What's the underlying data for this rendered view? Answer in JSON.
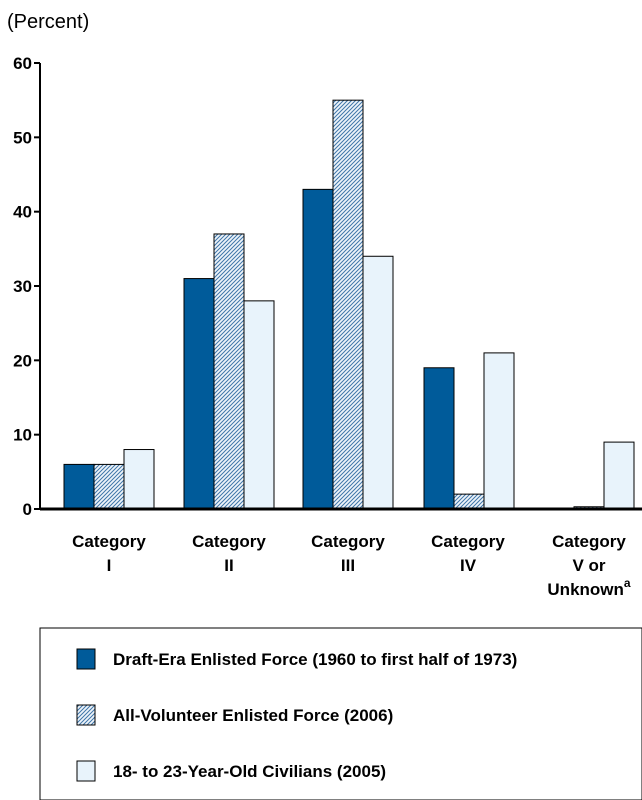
{
  "chart_data": {
    "type": "bar",
    "unit_label": "(Percent)",
    "categories": [
      {
        "lines": [
          "Category",
          "I"
        ],
        "footnote": ""
      },
      {
        "lines": [
          "Category",
          "II"
        ],
        "footnote": ""
      },
      {
        "lines": [
          "Category",
          "III"
        ],
        "footnote": ""
      },
      {
        "lines": [
          "Category",
          "IV"
        ],
        "footnote": ""
      },
      {
        "lines": [
          "Category",
          "V or",
          "Unknown"
        ],
        "footnote": "a"
      }
    ],
    "ylim": [
      0,
      60
    ],
    "yticks": [
      "0",
      "10",
      "20",
      "30",
      "40",
      "50",
      "60"
    ],
    "grid": false,
    "legend_position": "bottom",
    "series": [
      {
        "name": "Draft-Era Enlisted Force (1960 to first half of 1973)",
        "pattern": "solid",
        "color": "#005b9a",
        "values": [
          6,
          31,
          43,
          19,
          0
        ]
      },
      {
        "name": "All-Volunteer Enlisted Force (2006)",
        "pattern": "hatch",
        "color": "#4a7fb0",
        "values": [
          6,
          37,
          55,
          2,
          0.3
        ]
      },
      {
        "name": "18- to 23-Year-Old Civilians (2005)",
        "pattern": "light",
        "color": "#e8f3fb",
        "values": [
          8,
          28,
          34,
          21,
          9
        ]
      }
    ]
  }
}
